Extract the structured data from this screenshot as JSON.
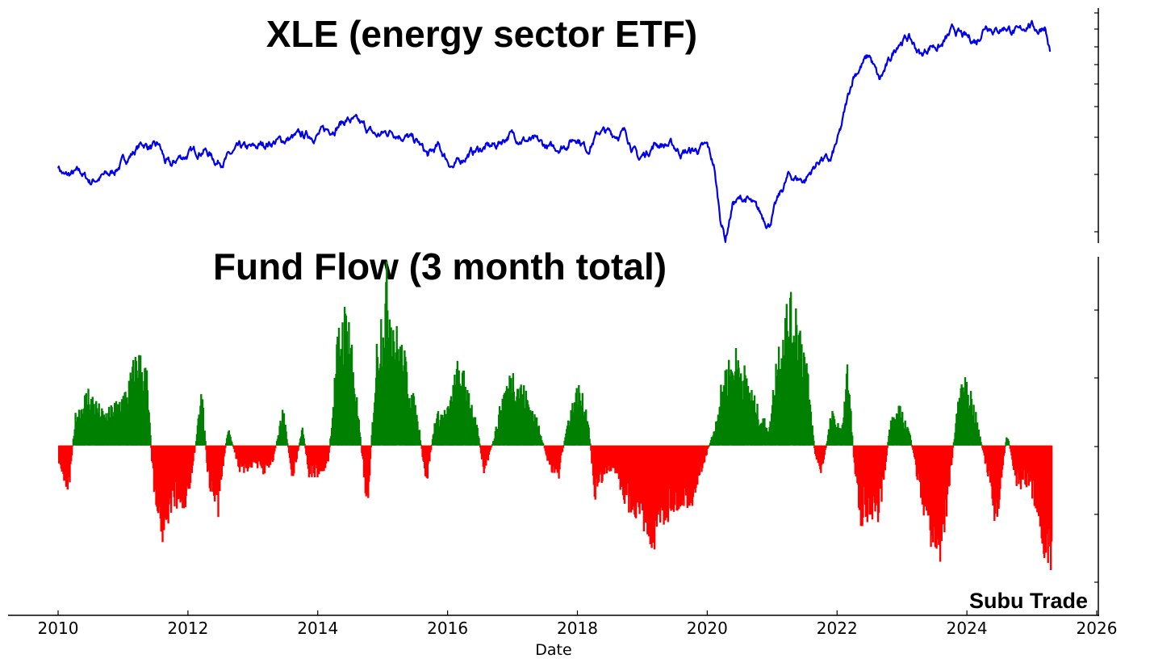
{
  "chart_data": [
    {
      "type": "line",
      "title": "XLE (energy sector ETF)",
      "color": "#0000ee",
      "series": [
        {
          "values": [
            [
              2010.0,
              43
            ],
            [
              2010.1,
              40
            ],
            [
              2010.35,
              41
            ],
            [
              2010.5,
              38.5
            ],
            [
              2010.6,
              39.5
            ],
            [
              2010.8,
              40.5
            ],
            [
              2011.0,
              44
            ],
            [
              2011.3,
              49
            ],
            [
              2011.5,
              47.5
            ],
            [
              2011.55,
              48.5
            ],
            [
              2011.65,
              44
            ],
            [
              2011.75,
              42.5
            ],
            [
              2011.85,
              45
            ],
            [
              2012.0,
              46
            ],
            [
              2012.25,
              47.5
            ],
            [
              2012.45,
              44
            ],
            [
              2012.6,
              45
            ],
            [
              2012.8,
              47.5
            ],
            [
              2013.0,
              47.5
            ],
            [
              2013.2,
              49
            ],
            [
              2013.5,
              50
            ],
            [
              2013.75,
              51
            ],
            [
              2014.0,
              51.5
            ],
            [
              2014.2,
              53
            ],
            [
              2014.45,
              55.5
            ],
            [
              2014.55,
              55
            ],
            [
              2014.75,
              53
            ],
            [
              2014.9,
              51
            ],
            [
              2015.15,
              52.5
            ],
            [
              2015.35,
              51
            ],
            [
              2015.55,
              49
            ],
            [
              2015.7,
              45.5
            ],
            [
              2015.85,
              48
            ],
            [
              2016.0,
              44.5
            ],
            [
              2016.1,
              42.5
            ],
            [
              2016.3,
              46
            ],
            [
              2016.5,
              47.5
            ],
            [
              2016.75,
              48.5
            ],
            [
              2016.95,
              51.5
            ],
            [
              2017.2,
              50
            ],
            [
              2017.4,
              49
            ],
            [
              2017.6,
              47.5
            ],
            [
              2017.8,
              48.5
            ],
            [
              2018.0,
              51
            ],
            [
              2018.15,
              47.5
            ],
            [
              2018.35,
              52.5
            ],
            [
              2018.55,
              51.5
            ],
            [
              2018.75,
              52
            ],
            [
              2018.85,
              48
            ],
            [
              2018.95,
              44.5
            ],
            [
              2019.2,
              49
            ],
            [
              2019.45,
              48.5
            ],
            [
              2019.6,
              46.5
            ],
            [
              2019.8,
              47
            ],
            [
              2020.0,
              48
            ],
            [
              2020.1,
              43
            ],
            [
              2020.2,
              29
            ],
            [
              2020.28,
              23
            ],
            [
              2020.4,
              33
            ],
            [
              2020.6,
              34
            ],
            [
              2020.8,
              30
            ],
            [
              2020.95,
              27
            ],
            [
              2021.1,
              34
            ],
            [
              2021.25,
              40
            ],
            [
              2021.5,
              39
            ],
            [
              2021.75,
              45
            ],
            [
              2021.9,
              44
            ],
            [
              2022.05,
              52
            ],
            [
              2022.15,
              60
            ],
            [
              2022.25,
              67.5
            ],
            [
              2022.4,
              71
            ],
            [
              2022.5,
              73
            ],
            [
              2022.65,
              66
            ],
            [
              2022.8,
              71
            ],
            [
              2022.95,
              77
            ],
            [
              2023.1,
              78
            ],
            [
              2023.3,
              73
            ],
            [
              2023.45,
              76
            ],
            [
              2023.6,
              75.5
            ],
            [
              2023.8,
              80
            ],
            [
              2023.95,
              78
            ],
            [
              2024.15,
              77
            ],
            [
              2024.3,
              82
            ],
            [
              2024.45,
              80
            ],
            [
              2024.6,
              81
            ],
            [
              2024.8,
              79
            ],
            [
              2024.95,
              82
            ],
            [
              2025.1,
              80
            ],
            [
              2025.2,
              81.5
            ],
            [
              2025.28,
              74
            ]
          ]
        }
      ],
      "xlim": [
        2009.25,
        2026.1
      ],
      "ylim": [
        22,
        86
      ]
    },
    {
      "type": "area",
      "title": "Fund Flow (3 month total)",
      "colors": {
        "positive": "#008000",
        "negative": "#ff0000"
      },
      "series": [
        {
          "values": [
            [
              2010.0,
              -0.5
            ],
            [
              2010.15,
              -1.2
            ],
            [
              2010.25,
              0.8
            ],
            [
              2010.45,
              1.5
            ],
            [
              2010.7,
              0.8
            ],
            [
              2010.9,
              1.2
            ],
            [
              2011.05,
              1.5
            ],
            [
              2011.2,
              2.5
            ],
            [
              2011.35,
              2.0
            ],
            [
              2011.45,
              -1.0
            ],
            [
              2011.6,
              -2.5
            ],
            [
              2011.75,
              -1.5
            ],
            [
              2011.9,
              -1.8
            ],
            [
              2012.05,
              -0.8
            ],
            [
              2012.2,
              1.5
            ],
            [
              2012.3,
              -1.0
            ],
            [
              2012.45,
              -1.8
            ],
            [
              2012.6,
              0.5
            ],
            [
              2012.8,
              -0.8
            ],
            [
              2013.0,
              -0.5
            ],
            [
              2013.15,
              -0.8
            ],
            [
              2013.3,
              -0.4
            ],
            [
              2013.45,
              1.0
            ],
            [
              2013.6,
              -1.0
            ],
            [
              2013.75,
              0.5
            ],
            [
              2013.85,
              -0.8
            ],
            [
              2014.0,
              -0.8
            ],
            [
              2014.15,
              -0.5
            ],
            [
              2014.3,
              3.0
            ],
            [
              2014.45,
              3.8
            ],
            [
              2014.6,
              1.0
            ],
            [
              2014.75,
              -1.8
            ],
            [
              2014.9,
              2.8
            ],
            [
              2015.05,
              4.5
            ],
            [
              2015.2,
              3.0
            ],
            [
              2015.35,
              2.2
            ],
            [
              2015.55,
              0.5
            ],
            [
              2015.65,
              -1.2
            ],
            [
              2015.8,
              0.8
            ],
            [
              2016.0,
              1.0
            ],
            [
              2016.15,
              2.2
            ],
            [
              2016.3,
              1.6
            ],
            [
              2016.45,
              0.4
            ],
            [
              2016.55,
              -0.8
            ],
            [
              2016.7,
              0.2
            ],
            [
              2016.85,
              1.5
            ],
            [
              2017.0,
              2.0
            ],
            [
              2017.2,
              1.4
            ],
            [
              2017.4,
              0.5
            ],
            [
              2017.55,
              -0.6
            ],
            [
              2017.7,
              -0.8
            ],
            [
              2017.85,
              0.8
            ],
            [
              2018.0,
              1.6
            ],
            [
              2018.15,
              0.8
            ],
            [
              2018.25,
              -1.4
            ],
            [
              2018.4,
              -0.8
            ],
            [
              2018.55,
              -0.6
            ],
            [
              2018.75,
              -1.6
            ],
            [
              2018.95,
              -1.9
            ],
            [
              2019.15,
              -2.6
            ],
            [
              2019.35,
              -1.9
            ],
            [
              2019.55,
              -1.6
            ],
            [
              2019.75,
              -1.5
            ],
            [
              2019.95,
              -0.4
            ],
            [
              2020.1,
              0.5
            ],
            [
              2020.25,
              2.0
            ],
            [
              2020.45,
              2.5
            ],
            [
              2020.6,
              1.8
            ],
            [
              2020.8,
              0.8
            ],
            [
              2020.95,
              0.5
            ],
            [
              2021.05,
              2.4
            ],
            [
              2021.2,
              3.6
            ],
            [
              2021.35,
              3.8
            ],
            [
              2021.5,
              2.5
            ],
            [
              2021.65,
              -0.3
            ],
            [
              2021.75,
              -0.8
            ],
            [
              2021.9,
              0.9
            ],
            [
              2022.05,
              0.4
            ],
            [
              2022.15,
              2.2
            ],
            [
              2022.25,
              -0.5
            ],
            [
              2022.35,
              -2.0
            ],
            [
              2022.5,
              -1.8
            ],
            [
              2022.65,
              -2.0
            ],
            [
              2022.8,
              0.6
            ],
            [
              2022.95,
              1.0
            ],
            [
              2023.1,
              0.4
            ],
            [
              2023.25,
              -1.2
            ],
            [
              2023.4,
              -2.3
            ],
            [
              2023.55,
              -3.3
            ],
            [
              2023.7,
              -1.4
            ],
            [
              2023.85,
              1.3
            ],
            [
              2024.0,
              1.8
            ],
            [
              2024.15,
              0.6
            ],
            [
              2024.3,
              -0.8
            ],
            [
              2024.45,
              -2.2
            ],
            [
              2024.6,
              0.4
            ],
            [
              2024.75,
              -1.0
            ],
            [
              2024.95,
              -1.2
            ],
            [
              2025.1,
              -1.9
            ],
            [
              2025.2,
              -3.0
            ],
            [
              2025.3,
              -3.6
            ]
          ]
        }
      ],
      "xlim": [
        2009.25,
        2026.1
      ],
      "ylim": [
        -4.5,
        5.0
      ]
    }
  ],
  "xaxis": {
    "label": "Date",
    "ticks": [
      "2010",
      "2012",
      "2014",
      "2016",
      "2018",
      "2020",
      "2022",
      "2024",
      "2026"
    ]
  },
  "watermark": "Subu Trade"
}
